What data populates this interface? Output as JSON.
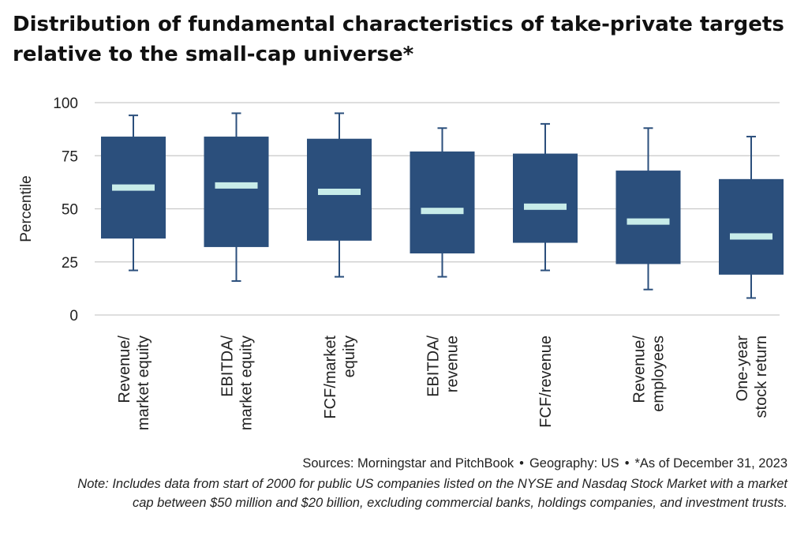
{
  "title": {
    "line1": "Distribution of fundamental characteristics of take-private targets",
    "line2": "relative to the small-cap universe*"
  },
  "footer": {
    "sources": "Sources: Morningstar and PitchBook",
    "geography": "Geography: US",
    "asof": "*As of December 31, 2023",
    "separator": "•",
    "note_line1": "Note: Includes data from start of 2000 for public US companies listed on the NYSE and Nasdaq Stock Market with a market",
    "note_line2": "cap between $50 million and $20 billion, excluding commercial banks, holdings companies, and investment trusts."
  },
  "colors": {
    "box": "#2b4f7c",
    "median": "#c8ece9",
    "whisker": "#2b4f7c",
    "grid": "#c9c9c9",
    "axis_text": "#222222"
  },
  "chart_data": {
    "type": "boxplot",
    "ylabel": "Percentile",
    "ylim": [
      0,
      100
    ],
    "yticks": [
      0,
      25,
      50,
      75,
      100
    ],
    "grid": true,
    "categories": [
      [
        "Revenue/",
        "market equity"
      ],
      [
        "EBITDA/",
        "market equity"
      ],
      [
        "FCF/market",
        "equity"
      ],
      [
        "EBITDA/",
        "revenue"
      ],
      [
        "FCF/revenue"
      ],
      [
        "Revenue/",
        "employees"
      ],
      [
        "One-year",
        "stock return"
      ]
    ],
    "boxes": [
      {
        "whisker_low": 21,
        "q1": 36,
        "median": 60,
        "q3": 84,
        "whisker_high": 94
      },
      {
        "whisker_low": 16,
        "q1": 32,
        "median": 61,
        "q3": 84,
        "whisker_high": 95
      },
      {
        "whisker_low": 18,
        "q1": 35,
        "median": 58,
        "q3": 83,
        "whisker_high": 95
      },
      {
        "whisker_low": 18,
        "q1": 29,
        "median": 49,
        "q3": 77,
        "whisker_high": 88
      },
      {
        "whisker_low": 21,
        "q1": 34,
        "median": 51,
        "q3": 76,
        "whisker_high": 90
      },
      {
        "whisker_low": 12,
        "q1": 24,
        "median": 44,
        "q3": 68,
        "whisker_high": 88
      },
      {
        "whisker_low": 8,
        "q1": 19,
        "median": 37,
        "q3": 64,
        "whisker_high": 84
      }
    ]
  }
}
